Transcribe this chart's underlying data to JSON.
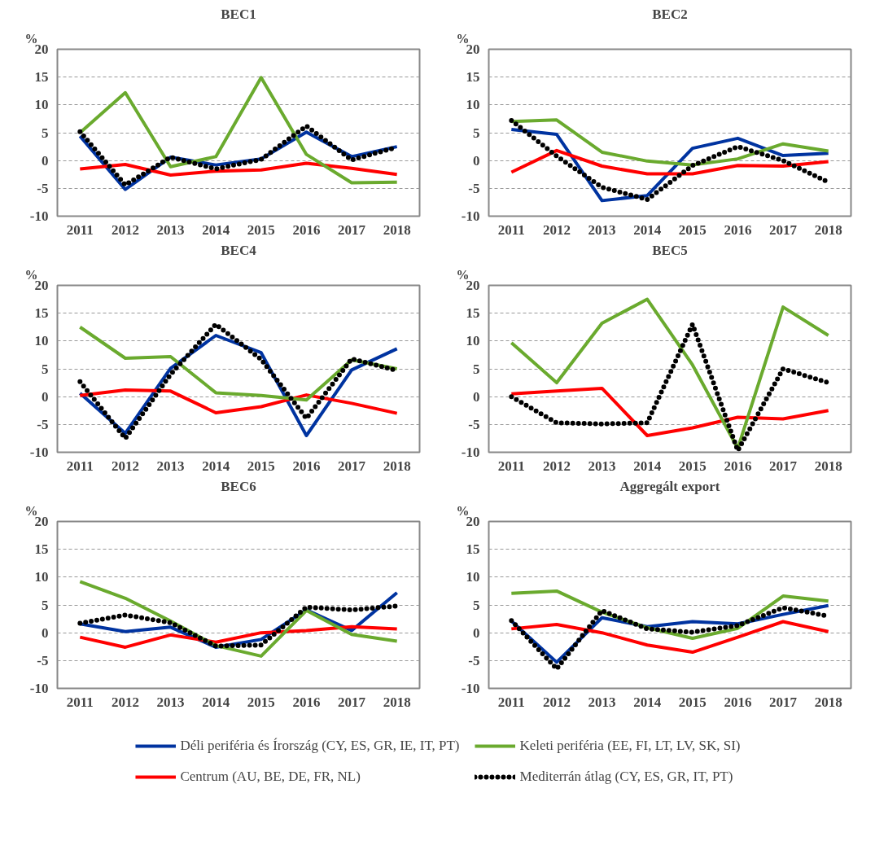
{
  "chart_data": [
    {
      "type": "line",
      "title": "BEC1",
      "ylabel": "%",
      "categories": [
        "2011",
        "2012",
        "2013",
        "2014",
        "2015",
        "2016",
        "2017",
        "2018"
      ],
      "ylim": [
        -10,
        20
      ],
      "yticks": [
        -10,
        -5,
        0,
        5,
        10,
        15,
        20
      ],
      "grid": "y",
      "legend": "bottom",
      "series": [
        {
          "name": "Déli periféria és Írország (CY, ES, GR, IE, IT, PT)",
          "color": "#0033a0",
          "line_style": "solid",
          "values": [
            4.4,
            -5.2,
            0.6,
            -0.8,
            0.3,
            5.1,
            0.7,
            2.5
          ]
        },
        {
          "name": "Centrum (AU, BE, DE, FR, NL)",
          "color": "#ff0000",
          "line_style": "solid",
          "values": [
            -1.5,
            -0.7,
            -2.6,
            -1.9,
            -1.7,
            -0.5,
            -1.4,
            -2.5
          ]
        },
        {
          "name": "Keleti periféria (EE, FI, LT, LV, SK, SI)",
          "color": "#6aaa2e",
          "line_style": "solid",
          "values": [
            5.0,
            12.2,
            -1.1,
            0.7,
            14.9,
            1.1,
            -4.0,
            -3.9
          ]
        },
        {
          "name": "Mediterrán átlag (CY, ES, GR, IT, PT)",
          "color": "#000000",
          "line_style": "dotted",
          "values": [
            5.2,
            -4.4,
            0.6,
            -1.5,
            0.2,
            6.2,
            0.1,
            2.4
          ]
        }
      ]
    },
    {
      "type": "line",
      "title": "BEC2",
      "ylabel": "%",
      "categories": [
        "2011",
        "2012",
        "2013",
        "2014",
        "2015",
        "2016",
        "2017",
        "2018"
      ],
      "ylim": [
        -10,
        20
      ],
      "yticks": [
        -10,
        -5,
        0,
        5,
        10,
        15,
        20
      ],
      "grid": "y",
      "series": [
        {
          "color": "#0033a0",
          "line_style": "solid",
          "values": [
            5.6,
            4.7,
            -7.2,
            -6.3,
            2.2,
            4.0,
            0.9,
            1.3
          ]
        },
        {
          "color": "#ff0000",
          "line_style": "solid",
          "values": [
            -2.1,
            1.8,
            -1.0,
            -2.4,
            -2.4,
            -0.9,
            -1.0,
            -0.2
          ]
        },
        {
          "color": "#6aaa2e",
          "line_style": "solid",
          "values": [
            7.0,
            7.3,
            1.5,
            -0.1,
            -0.8,
            0.3,
            3.0,
            1.7
          ]
        },
        {
          "color": "#000000",
          "line_style": "dotted",
          "values": [
            7.2,
            0.8,
            -4.8,
            -7.0,
            -0.9,
            2.5,
            0.0,
            -3.9
          ]
        }
      ]
    },
    {
      "type": "line",
      "title": "BEC4",
      "ylabel": "%",
      "categories": [
        "2011",
        "2012",
        "2013",
        "2014",
        "2015",
        "2016",
        "2017",
        "2018"
      ],
      "ylim": [
        -10,
        20
      ],
      "yticks": [
        -10,
        -5,
        0,
        5,
        10,
        15,
        20
      ],
      "grid": "y",
      "series": [
        {
          "color": "#0033a0",
          "line_style": "solid",
          "values": [
            0.6,
            -6.6,
            5.1,
            11.0,
            7.9,
            -7.0,
            4.8,
            8.6
          ]
        },
        {
          "color": "#ff0000",
          "line_style": "solid",
          "values": [
            0.2,
            1.2,
            1.0,
            -2.9,
            -1.8,
            0.3,
            -1.2,
            -3.0
          ]
        },
        {
          "color": "#6aaa2e",
          "line_style": "solid",
          "values": [
            12.5,
            6.9,
            7.2,
            0.7,
            0.2,
            -0.6,
            6.6,
            5.0
          ]
        },
        {
          "color": "#000000",
          "line_style": "dotted",
          "values": [
            2.7,
            -7.5,
            4.0,
            13.0,
            6.7,
            -3.9,
            6.8,
            4.7
          ]
        }
      ]
    },
    {
      "type": "line",
      "title": "BEC5",
      "ylabel": "%",
      "categories": [
        "2011",
        "2012",
        "2013",
        "2014",
        "2015",
        "2016",
        "2017",
        "2018"
      ],
      "ylim": [
        -10,
        20
      ],
      "yticks": [
        -10,
        -5,
        0,
        5,
        10,
        15,
        20
      ],
      "grid": "y",
      "series": [
        {
          "color": "#ff0000",
          "line_style": "solid",
          "values": [
            0.5,
            1.0,
            1.5,
            -7.0,
            -5.6,
            -3.7,
            -4.0,
            -2.5
          ]
        },
        {
          "color": "#6aaa2e",
          "line_style": "solid",
          "values": [
            9.7,
            2.5,
            13.2,
            17.5,
            5.7,
            -9.3,
            16.1,
            11.0
          ]
        },
        {
          "color": "#000000",
          "line_style": "dotted",
          "values": [
            0.0,
            -4.7,
            -4.9,
            -4.7,
            13.0,
            -9.7,
            5.0,
            2.5
          ]
        }
      ]
    },
    {
      "type": "line",
      "title": "BEC6",
      "ylabel": "%",
      "categories": [
        "2011",
        "2012",
        "2013",
        "2014",
        "2015",
        "2016",
        "2017",
        "2018"
      ],
      "ylim": [
        -10,
        20
      ],
      "yticks": [
        -10,
        -5,
        0,
        5,
        10,
        15,
        20
      ],
      "grid": "y",
      "series": [
        {
          "color": "#0033a0",
          "line_style": "solid",
          "values": [
            1.6,
            0.2,
            1.0,
            -2.6,
            -1.2,
            4.1,
            0.4,
            7.2
          ]
        },
        {
          "color": "#ff0000",
          "line_style": "solid",
          "values": [
            -0.8,
            -2.6,
            -0.4,
            -1.7,
            0.0,
            0.4,
            1.1,
            0.7
          ]
        },
        {
          "color": "#6aaa2e",
          "line_style": "solid",
          "values": [
            9.2,
            6.2,
            2.1,
            -2.3,
            -4.2,
            4.0,
            -0.3,
            -1.5
          ]
        },
        {
          "color": "#000000",
          "line_style": "dotted",
          "values": [
            1.7,
            3.2,
            1.8,
            -2.4,
            -2.2,
            4.6,
            4.1,
            4.8
          ]
        }
      ]
    },
    {
      "type": "line",
      "title": "Aggregált export",
      "ylabel": "%",
      "categories": [
        "2011",
        "2012",
        "2013",
        "2014",
        "2015",
        "2016",
        "2017",
        "2018"
      ],
      "ylim": [
        -10,
        20
      ],
      "yticks": [
        -10,
        -5,
        0,
        5,
        10,
        15,
        20
      ],
      "grid": "y",
      "series": [
        {
          "color": "#0033a0",
          "line_style": "solid",
          "values": [
            2.1,
            -5.3,
            2.7,
            1.1,
            2.0,
            1.6,
            3.3,
            4.9
          ]
        },
        {
          "color": "#ff0000",
          "line_style": "solid",
          "values": [
            0.7,
            1.5,
            0.0,
            -2.2,
            -3.5,
            -0.8,
            2.0,
            0.2
          ]
        },
        {
          "color": "#6aaa2e",
          "line_style": "solid",
          "values": [
            7.1,
            7.5,
            3.7,
            0.9,
            -1.0,
            0.8,
            6.6,
            5.7
          ]
        },
        {
          "color": "#000000",
          "line_style": "dotted",
          "values": [
            2.2,
            -6.5,
            4.0,
            0.7,
            0.1,
            1.3,
            4.5,
            3.0
          ]
        }
      ]
    }
  ]
}
